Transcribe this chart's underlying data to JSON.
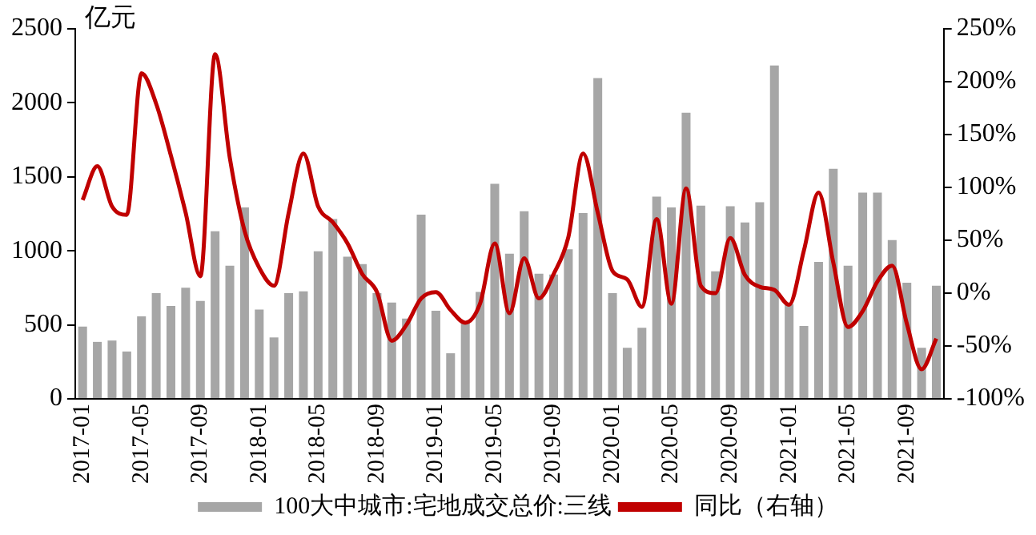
{
  "chart_data": {
    "type": "bar",
    "ylabel": "亿元",
    "categories": [
      "2017-01",
      null,
      null,
      null,
      "2017-05",
      null,
      null,
      null,
      "2017-09",
      null,
      null,
      null,
      "2018-01",
      null,
      null,
      null,
      "2018-05",
      null,
      null,
      null,
      "2018-09",
      null,
      null,
      null,
      "2019-01",
      null,
      null,
      null,
      "2019-05",
      null,
      null,
      null,
      "2019-09",
      null,
      null,
      null,
      "2020-01",
      null,
      null,
      null,
      "2020-05",
      null,
      null,
      null,
      "2020-09",
      null,
      null,
      null,
      "2021-01",
      null,
      null,
      null,
      "2021-05",
      null,
      null,
      null,
      "2021-09",
      null,
      null
    ],
    "series": [
      {
        "name": "100大中城市:宅地成交总价:三线",
        "color": "#a6a6a6",
        "values": [
          489,
          385,
          394,
          320,
          558,
          714,
          628,
          751,
          661,
          1133,
          899,
          1293,
          603,
          415,
          714,
          727,
          997,
          1215,
          960,
          911,
          714,
          651,
          542,
          1244,
          595,
          308,
          517,
          723,
          1453,
          981,
          1268,
          846,
          840,
          1010,
          1256,
          2167,
          714,
          345,
          480,
          1367,
          1293,
          1933,
          1305,
          862,
          1302,
          1192,
          1328,
          2253,
          640,
          493,
          925,
          1554,
          900,
          1394,
          1394,
          1073,
          785,
          345,
          765
        ]
      },
      {
        "name": "同比（右轴）",
        "type": "line",
        "axis": "y2",
        "color": "#c00000",
        "values": [
          88,
          120,
          82,
          74,
          208,
          179,
          130,
          76,
          16,
          226,
          128,
          59,
          24,
          7,
          76,
          132,
          82,
          67,
          47,
          18,
          1,
          -45,
          -30,
          -5,
          1,
          -16,
          -28,
          -10,
          47,
          -19,
          33,
          -5,
          18,
          53,
          132,
          76,
          21,
          13,
          -13,
          70,
          -10,
          99,
          7,
          0,
          52,
          17,
          6,
          3,
          -11,
          40,
          95,
          29,
          -32,
          -17,
          11,
          26,
          -29,
          -72,
          -43
        ]
      }
    ],
    "ylim": [
      0,
      2500
    ],
    "yticks": [
      0,
      500,
      1000,
      1500,
      2000,
      2500
    ],
    "y2lim": [
      -100,
      250
    ],
    "y2ticks": [
      {
        "value": -100,
        "label": "-100%"
      },
      {
        "value": -50,
        "label": "-50%"
      },
      {
        "value": 0,
        "label": "0%"
      },
      {
        "value": 50,
        "label": "50%"
      },
      {
        "value": 100,
        "label": "100%"
      },
      {
        "value": 150,
        "label": "150%"
      },
      {
        "value": 200,
        "label": "200%"
      },
      {
        "value": 250,
        "label": "250%"
      }
    ],
    "grid": false,
    "legend": "bottom"
  }
}
